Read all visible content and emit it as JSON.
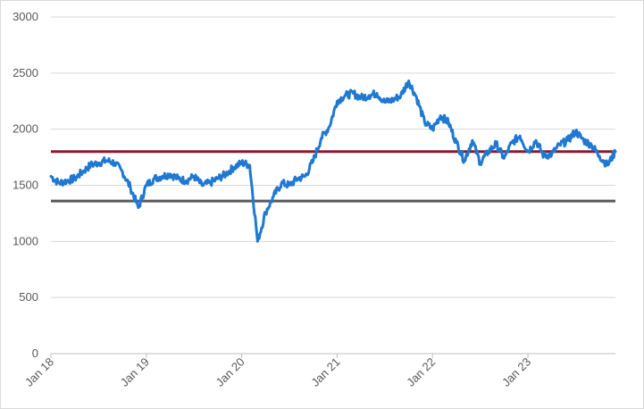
{
  "chart_data": {
    "type": "line",
    "title": "",
    "xlabel": "",
    "ylabel": "",
    "ylim": [
      0,
      3000
    ],
    "y_ticks": [
      0,
      500,
      1000,
      1500,
      2000,
      2500,
      3000
    ],
    "y_tick_labels": [
      "0",
      "500",
      "1000",
      "1500",
      "2000",
      "2500",
      "3000"
    ],
    "x_range": [
      "2018-01",
      "2023-12"
    ],
    "x_ticks": [
      "2018-01",
      "2019-01",
      "2020-01",
      "2021-01",
      "2022-01",
      "2023-01"
    ],
    "x_tick_labels": [
      "Jan 18",
      "Jan 19",
      "Jan 20",
      "Jan 21",
      "Jan 22",
      "Jan 23"
    ],
    "x_tick_label_rotation": "-45deg",
    "grid": "horizontal",
    "legend": "none",
    "colors": {
      "series": "#1f78d1",
      "upper_line": "#8b1a2e",
      "lower_line": "#595959",
      "grid": "#d9d9d9",
      "axis": "#bfbfbf"
    },
    "series": [
      {
        "x": [
          "2018-01",
          "2018-02",
          "2018-03",
          "2018-04",
          "2018-05",
          "2018-06",
          "2018-07",
          "2018-08",
          "2018-09",
          "2018-10",
          "2018-11",
          "2018-12",
          "2019-01",
          "2019-02",
          "2019-03",
          "2019-04",
          "2019-05",
          "2019-06",
          "2019-07",
          "2019-08",
          "2019-09",
          "2019-10",
          "2019-11",
          "2019-12",
          "2020-01",
          "2020-02",
          "2020-03",
          "2020-04",
          "2020-05",
          "2020-06",
          "2020-07",
          "2020-08",
          "2020-09",
          "2020-10",
          "2020-11",
          "2020-12",
          "2021-01",
          "2021-02",
          "2021-03",
          "2021-04",
          "2021-05",
          "2021-06",
          "2021-07",
          "2021-08",
          "2021-09",
          "2021-10",
          "2021-11",
          "2021-12",
          "2022-01",
          "2022-02",
          "2022-03",
          "2022-04",
          "2022-05",
          "2022-06",
          "2022-07",
          "2022-08",
          "2022-09",
          "2022-10",
          "2022-11",
          "2022-12",
          "2023-01",
          "2023-02",
          "2023-03",
          "2023-04",
          "2023-05",
          "2023-06",
          "2023-07",
          "2023-08",
          "2023-09",
          "2023-10",
          "2023-11",
          "2023-12"
        ],
        "values": [
          1580,
          1520,
          1540,
          1560,
          1620,
          1680,
          1700,
          1720,
          1700,
          1620,
          1480,
          1300,
          1500,
          1560,
          1580,
          1600,
          1560,
          1540,
          1580,
          1500,
          1520,
          1560,
          1600,
          1660,
          1700,
          1680,
          1000,
          1260,
          1400,
          1520,
          1500,
          1560,
          1580,
          1720,
          1920,
          2020,
          2250,
          2300,
          2320,
          2280,
          2300,
          2320,
          2240,
          2260,
          2300,
          2430,
          2280,
          2060,
          2000,
          2120,
          2060,
          1880,
          1720,
          1900,
          1700,
          1800,
          1870,
          1740,
          1880,
          1940,
          1800,
          1900,
          1760,
          1780,
          1860,
          1900,
          1980,
          1900,
          1860,
          1760,
          1680,
          1800
        ]
      }
    ],
    "reference_lines": [
      {
        "value": 1800
      },
      {
        "value": 1360
      }
    ]
  }
}
